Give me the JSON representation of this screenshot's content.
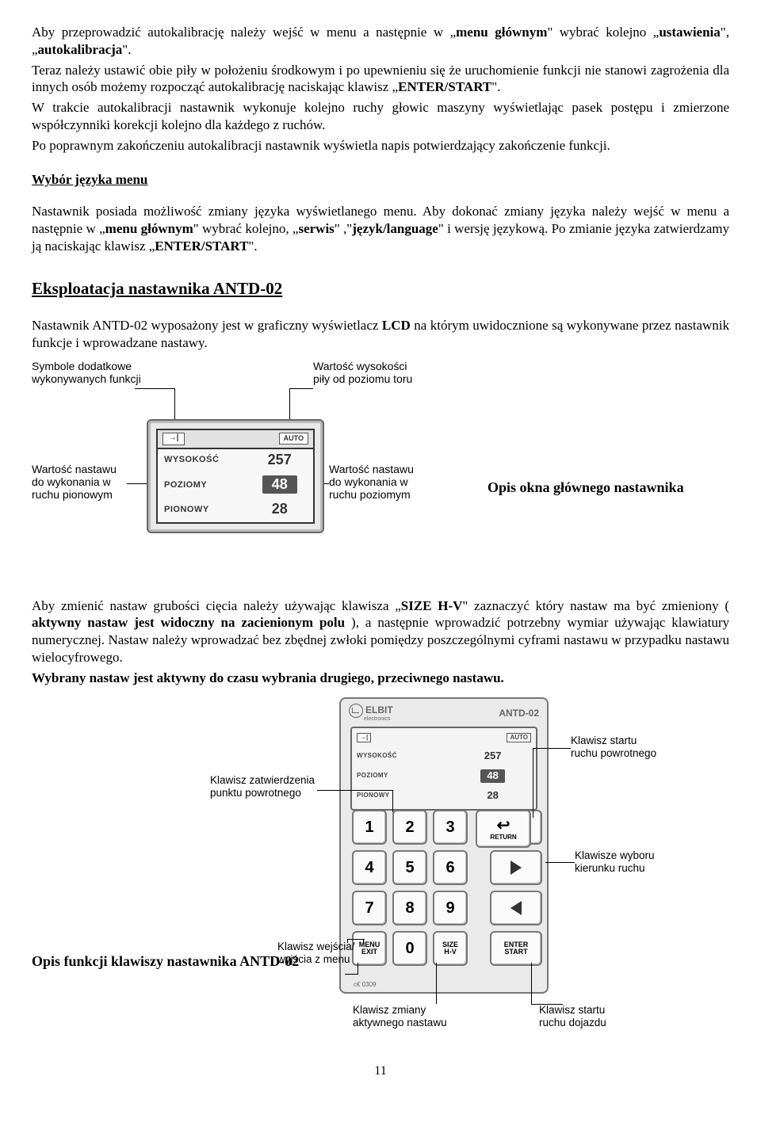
{
  "para1_a": "Aby przeprowadzić autokalibrację należy wejść w menu a następnie w „",
  "para1_b": "menu głównym",
  "para1_c": "\" wybrać kolejno „",
  "para1_d": "ustawienia",
  "para1_e": "\", „",
  "para1_f": "autokalibracja",
  "para1_g": "\".",
  "para2_a": "Teraz należy ustawić obie piły w położeniu środkowym i po upewnieniu się że uruchomienie funkcji nie stanowi zagrożenia dla innych osób możemy rozpocząć autokalibrację naciskając klawisz „",
  "para2_b": "ENTER/START",
  "para2_c": "\".",
  "para3": "W trakcie autokalibracji nastawnik wykonuje kolejno ruchy głowic maszyny wyświetlając pasek postępu i zmierzone współczynniki korekcji kolejno dla każdego z ruchów.",
  "para4": "Po poprawnym zakończeniu autokalibracji nastawnik wyświetla napis potwierdzający zakończenie funkcji.",
  "sec_lang_title": "Wybór języka menu",
  "lang_a": "Nastawnik posiada możliwość zmiany języka wyświetlanego menu. Aby dokonać zmiany języka należy wejść w menu a następnie w „",
  "lang_b": "menu głównym",
  "lang_c": "\" wybrać kolejno, „",
  "lang_d": "serwis",
  "lang_e": "\" ,\"",
  "lang_f": "język/language",
  "lang_g": "\" i wersję językową. Po zmianie języka zatwierdzamy ją naciskając klawisz „",
  "lang_h": "ENTER/START",
  "lang_i": "\".",
  "big_title": "Eksploatacja nastawnika ANTD-02",
  "eks_a": "Nastawnik ANTD-02 wyposażony jest w graficzny wyświetlacz ",
  "eks_b": "LCD",
  "eks_c": " na którym uwidocznione są wykonywane przez nastawnik funkcje i wprowadzane nastawy.",
  "callout_symbols": "Symbole dodatkowe\nwykonywanych funkcji",
  "callout_height": "Wartość wysokości\npiły od poziomu toru",
  "callout_v": "Wartość nastawu\ndo wykonania w\nruchu pionowym",
  "callout_h": "Wartość nastawu\ndo wykonania w\nruchu poziomym",
  "lcd": {
    "auto": "AUTO",
    "r1_lab": "WYSOKOŚĆ",
    "r1_val": "257",
    "r2_lab": "POZIOMY",
    "r2_val": "48",
    "r3_lab": "PIONOWY",
    "r3_val": "28"
  },
  "side_title": "Opis okna głównego nastawnika",
  "grub_a": "Aby zmienić nastaw grubości cięcia należy używając klawisza „",
  "grub_b": "SIZE H-V",
  "grub_c": "\" zaznaczyć który nastaw ma być zmieniony ( ",
  "grub_d": "aktywny nastaw jest widoczny na zacienionym polu",
  "grub_e": " ), a następnie wprowadzić potrzebny wymiar używając klawiatury numerycznej. Nastaw należy wprowadzać bez zbędnej zwłoki pomiędzy poszczególnymi cyframi nastawu w przypadku nastawu wielocyfrowego.",
  "grub_f": "Wybrany nastaw jest aktywny do czasu wybrania drugiego, przeciwnego nastawu.",
  "kp": {
    "brand": "ELBIT",
    "brand_sub": "electronics",
    "model": "ANTD-02",
    "memo": "MEMO\nRETURN",
    "return": "RETURN",
    "menu": "MENU\nEXIT",
    "size": "SIZE\nH-V",
    "enter": "ENTER\nSTART",
    "ce": "c€ 0309"
  },
  "kp_call_confirm": "Klawisz zatwierdzenia\npunktu powrotnego",
  "kp_call_return_start": "Klawisz startu\nruchu powrotnego",
  "kp_call_dir": "Klawisze wyboru\nkierunku ruchu",
  "kp_call_menu": "Klawisz wejścia/\nwyjścia z menu",
  "kp_call_size": "Klawisz zmiany\naktywnego nastawu",
  "kp_call_start": "Klawisz startu\nruchu dojazdu",
  "opis_funkcji": "Opis funkcji klawiszy nastawnika ANTD-02",
  "page": "11"
}
